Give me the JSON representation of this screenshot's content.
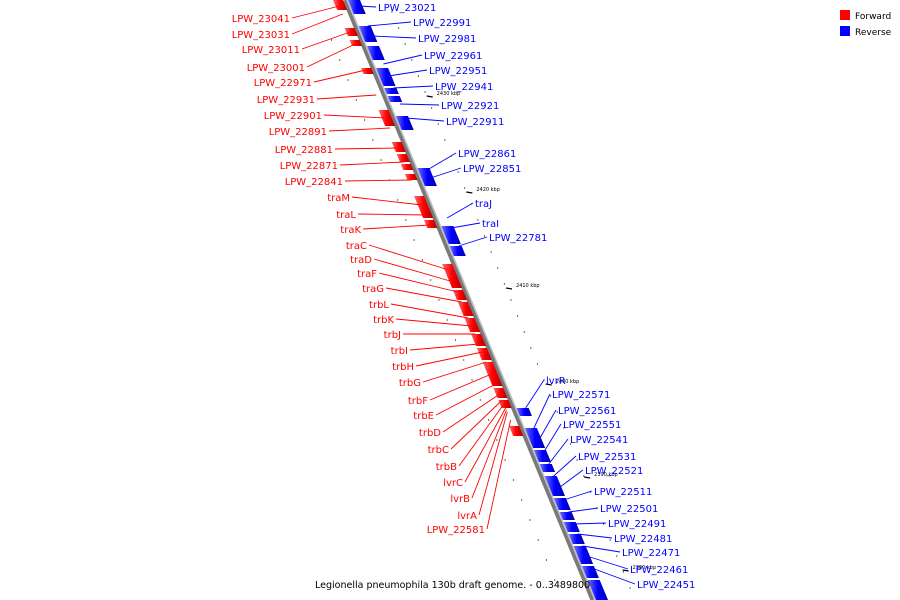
{
  "legend": [
    {
      "label": "Forward",
      "color": "#ff0000"
    },
    {
      "label": "Reverse",
      "color": "#0000ff"
    }
  ],
  "caption": "Legionella pneumophila 130b draft genome. - 0..3489800",
  "ticks": [
    "2430 kbp",
    "2420 kbp",
    "2410 kbp",
    "2400 kbp",
    "2390 kbp",
    "2380 kbp"
  ],
  "forward_genes": [
    "LPW_23041",
    "LPW_23031",
    "LPW_23011",
    "LPW_23001",
    "LPW_22971",
    "LPW_22931",
    "LPW_22901",
    "LPW_22891",
    "LPW_22881",
    "LPW_22871",
    "LPW_22841",
    "traM",
    "traL",
    "traK",
    "traC",
    "traD",
    "traF",
    "traG",
    "trbL",
    "trbK",
    "trbJ",
    "trbI",
    "trbH",
    "trbG",
    "trbF",
    "trbE",
    "trbD",
    "trbC",
    "trbB",
    "lvrC",
    "lvrB",
    "lvrA",
    "LPW_22581"
  ],
  "reverse_genes": [
    "LPW_23021",
    "LPW_22991",
    "LPW_22981",
    "LPW_22961",
    "LPW_22951",
    "LPW_22941",
    "LPW_22921",
    "LPW_22911",
    "LPW_22861",
    "LPW_22851",
    "traJ",
    "traI",
    "LPW_22781",
    "lvrR",
    "LPW_22571",
    "LPW_22561",
    "LPW_22551",
    "LPW_22541",
    "LPW_22531",
    "LPW_22521",
    "LPW_22511",
    "LPW_22501",
    "LPW_22491",
    "LPW_22481",
    "LPW_22471",
    "LPW_22461",
    "LPW_22451"
  ]
}
